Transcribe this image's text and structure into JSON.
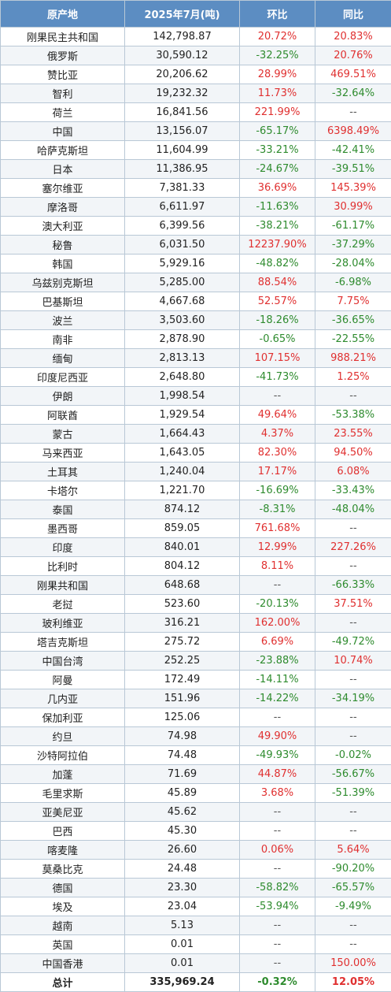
{
  "headers": [
    "原产地",
    "2025年7月(吨)",
    "环比",
    "同比"
  ],
  "rows": [
    [
      "刚果民主共和国",
      "142,798.87",
      "20.72%",
      "20.83%"
    ],
    [
      "俄罗斯",
      "30,590.12",
      "-32.25%",
      "20.76%"
    ],
    [
      "赞比亚",
      "20,206.62",
      "28.99%",
      "469.51%"
    ],
    [
      "智利",
      "19,232.32",
      "11.73%",
      "-32.64%"
    ],
    [
      "荷兰",
      "16,841.56",
      "221.99%",
      "--"
    ],
    [
      "中国",
      "13,156.07",
      "-65.17%",
      "6398.49%"
    ],
    [
      "哈萨克斯坦",
      "11,604.99",
      "-33.21%",
      "-42.41%"
    ],
    [
      "日本",
      "11,386.95",
      "-24.67%",
      "-39.51%"
    ],
    [
      "塞尔维亚",
      "7,381.33",
      "36.69%",
      "145.39%"
    ],
    [
      "摩洛哥",
      "6,611.97",
      "-11.63%",
      "30.99%"
    ],
    [
      "澳大利亚",
      "6,399.56",
      "-38.21%",
      "-61.17%"
    ],
    [
      "秘鲁",
      "6,031.50",
      "12237.90%",
      "-37.29%"
    ],
    [
      "韩国",
      "5,929.16",
      "-48.82%",
      "-28.04%"
    ],
    [
      "乌兹别克斯坦",
      "5,285.00",
      "88.54%",
      "-6.98%"
    ],
    [
      "巴基斯坦",
      "4,667.68",
      "52.57%",
      "7.75%"
    ],
    [
      "波兰",
      "3,503.60",
      "-18.26%",
      "-36.65%"
    ],
    [
      "南非",
      "2,878.90",
      "-0.65%",
      "-22.55%"
    ],
    [
      "缅甸",
      "2,813.13",
      "107.15%",
      "988.21%"
    ],
    [
      "印度尼西亚",
      "2,648.80",
      "-41.73%",
      "1.25%"
    ],
    [
      "伊朗",
      "1,998.54",
      "--",
      "--"
    ],
    [
      "阿联酋",
      "1,929.54",
      "49.64%",
      "-53.38%"
    ],
    [
      "蒙古",
      "1,664.43",
      "4.37%",
      "23.55%"
    ],
    [
      "马来西亚",
      "1,643.05",
      "82.30%",
      "94.50%"
    ],
    [
      "土耳其",
      "1,240.04",
      "17.17%",
      "6.08%"
    ],
    [
      "卡塔尔",
      "1,221.70",
      "-16.69%",
      "-33.43%"
    ],
    [
      "泰国",
      "874.12",
      "-8.31%",
      "-48.04%"
    ],
    [
      "墨西哥",
      "859.05",
      "761.68%",
      "--"
    ],
    [
      "印度",
      "840.01",
      "12.99%",
      "227.26%"
    ],
    [
      "比利时",
      "804.12",
      "8.11%",
      "--"
    ],
    [
      "刚果共和国",
      "648.68",
      "--",
      "-66.33%"
    ],
    [
      "老挝",
      "523.60",
      "-20.13%",
      "37.51%"
    ],
    [
      "玻利维亚",
      "316.21",
      "162.00%",
      "--"
    ],
    [
      "塔吉克斯坦",
      "275.72",
      "6.69%",
      "-49.72%"
    ],
    [
      "中国台湾",
      "252.25",
      "-23.88%",
      "10.74%"
    ],
    [
      "阿曼",
      "172.49",
      "-14.11%",
      "--"
    ],
    [
      "几内亚",
      "151.96",
      "-14.22%",
      "-34.19%"
    ],
    [
      "保加利亚",
      "125.06",
      "--",
      "--"
    ],
    [
      "约旦",
      "74.98",
      "49.90%",
      "--"
    ],
    [
      "沙特阿拉伯",
      "74.48",
      "-49.93%",
      "-0.02%"
    ],
    [
      "加蓬",
      "71.69",
      "44.87%",
      "-56.67%"
    ],
    [
      "毛里求斯",
      "45.89",
      "3.68%",
      "-51.39%"
    ],
    [
      "亚美尼亚",
      "45.62",
      "--",
      "--"
    ],
    [
      "巴西",
      "45.30",
      "--",
      "--"
    ],
    [
      "喀麦隆",
      "26.60",
      "0.06%",
      "5.64%"
    ],
    [
      "莫桑比克",
      "24.48",
      "--",
      "-90.20%"
    ],
    [
      "德国",
      "23.30",
      "-58.82%",
      "-65.57%"
    ],
    [
      "埃及",
      "23.04",
      "-53.94%",
      "-9.49%"
    ],
    [
      "越南",
      "5.13",
      "--",
      "--"
    ],
    [
      "英国",
      "0.01",
      "--",
      "--"
    ],
    [
      "中国香港",
      "0.01",
      "--",
      "150.00%"
    ]
  ],
  "total": [
    "总计",
    "335,969.24",
    "-0.32%",
    "12.05%"
  ],
  "colors": {
    "header_bg": "#5c8dc2",
    "positive": "#e03030",
    "negative": "#2e8b2e",
    "border": "#b9c8d6"
  }
}
